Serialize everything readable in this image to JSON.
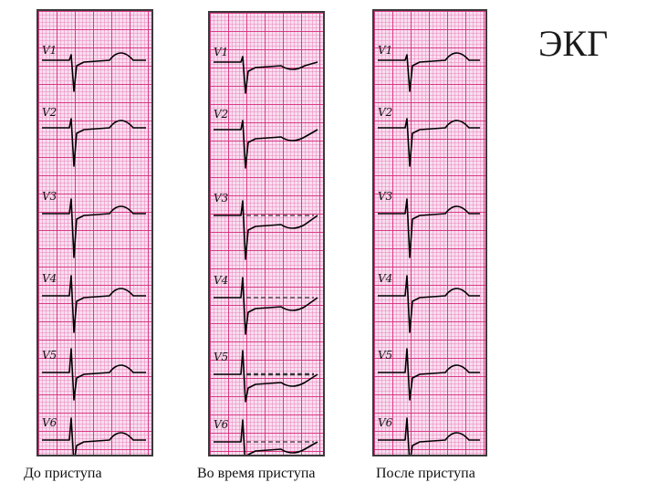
{
  "title": "ЭКГ",
  "panels": [
    {
      "caption": "До приступа",
      "leads": [
        "V1",
        "V2",
        "V3",
        "V4",
        "V5",
        "V6"
      ],
      "st_state": "baseline"
    },
    {
      "caption": "Во время приступа",
      "leads": [
        "V1",
        "V2",
        "V3",
        "V4",
        "V5",
        "V6"
      ],
      "st_state": "depressed"
    },
    {
      "caption": "После приступа",
      "leads": [
        "V1",
        "V2",
        "V3",
        "V4",
        "V5",
        "V6"
      ],
      "st_state": "recovered"
    }
  ],
  "colors": {
    "grid_major": "#d62878",
    "grid_minor": "#ec78b4",
    "paper": "#f7dff0",
    "trace": "#000000"
  }
}
